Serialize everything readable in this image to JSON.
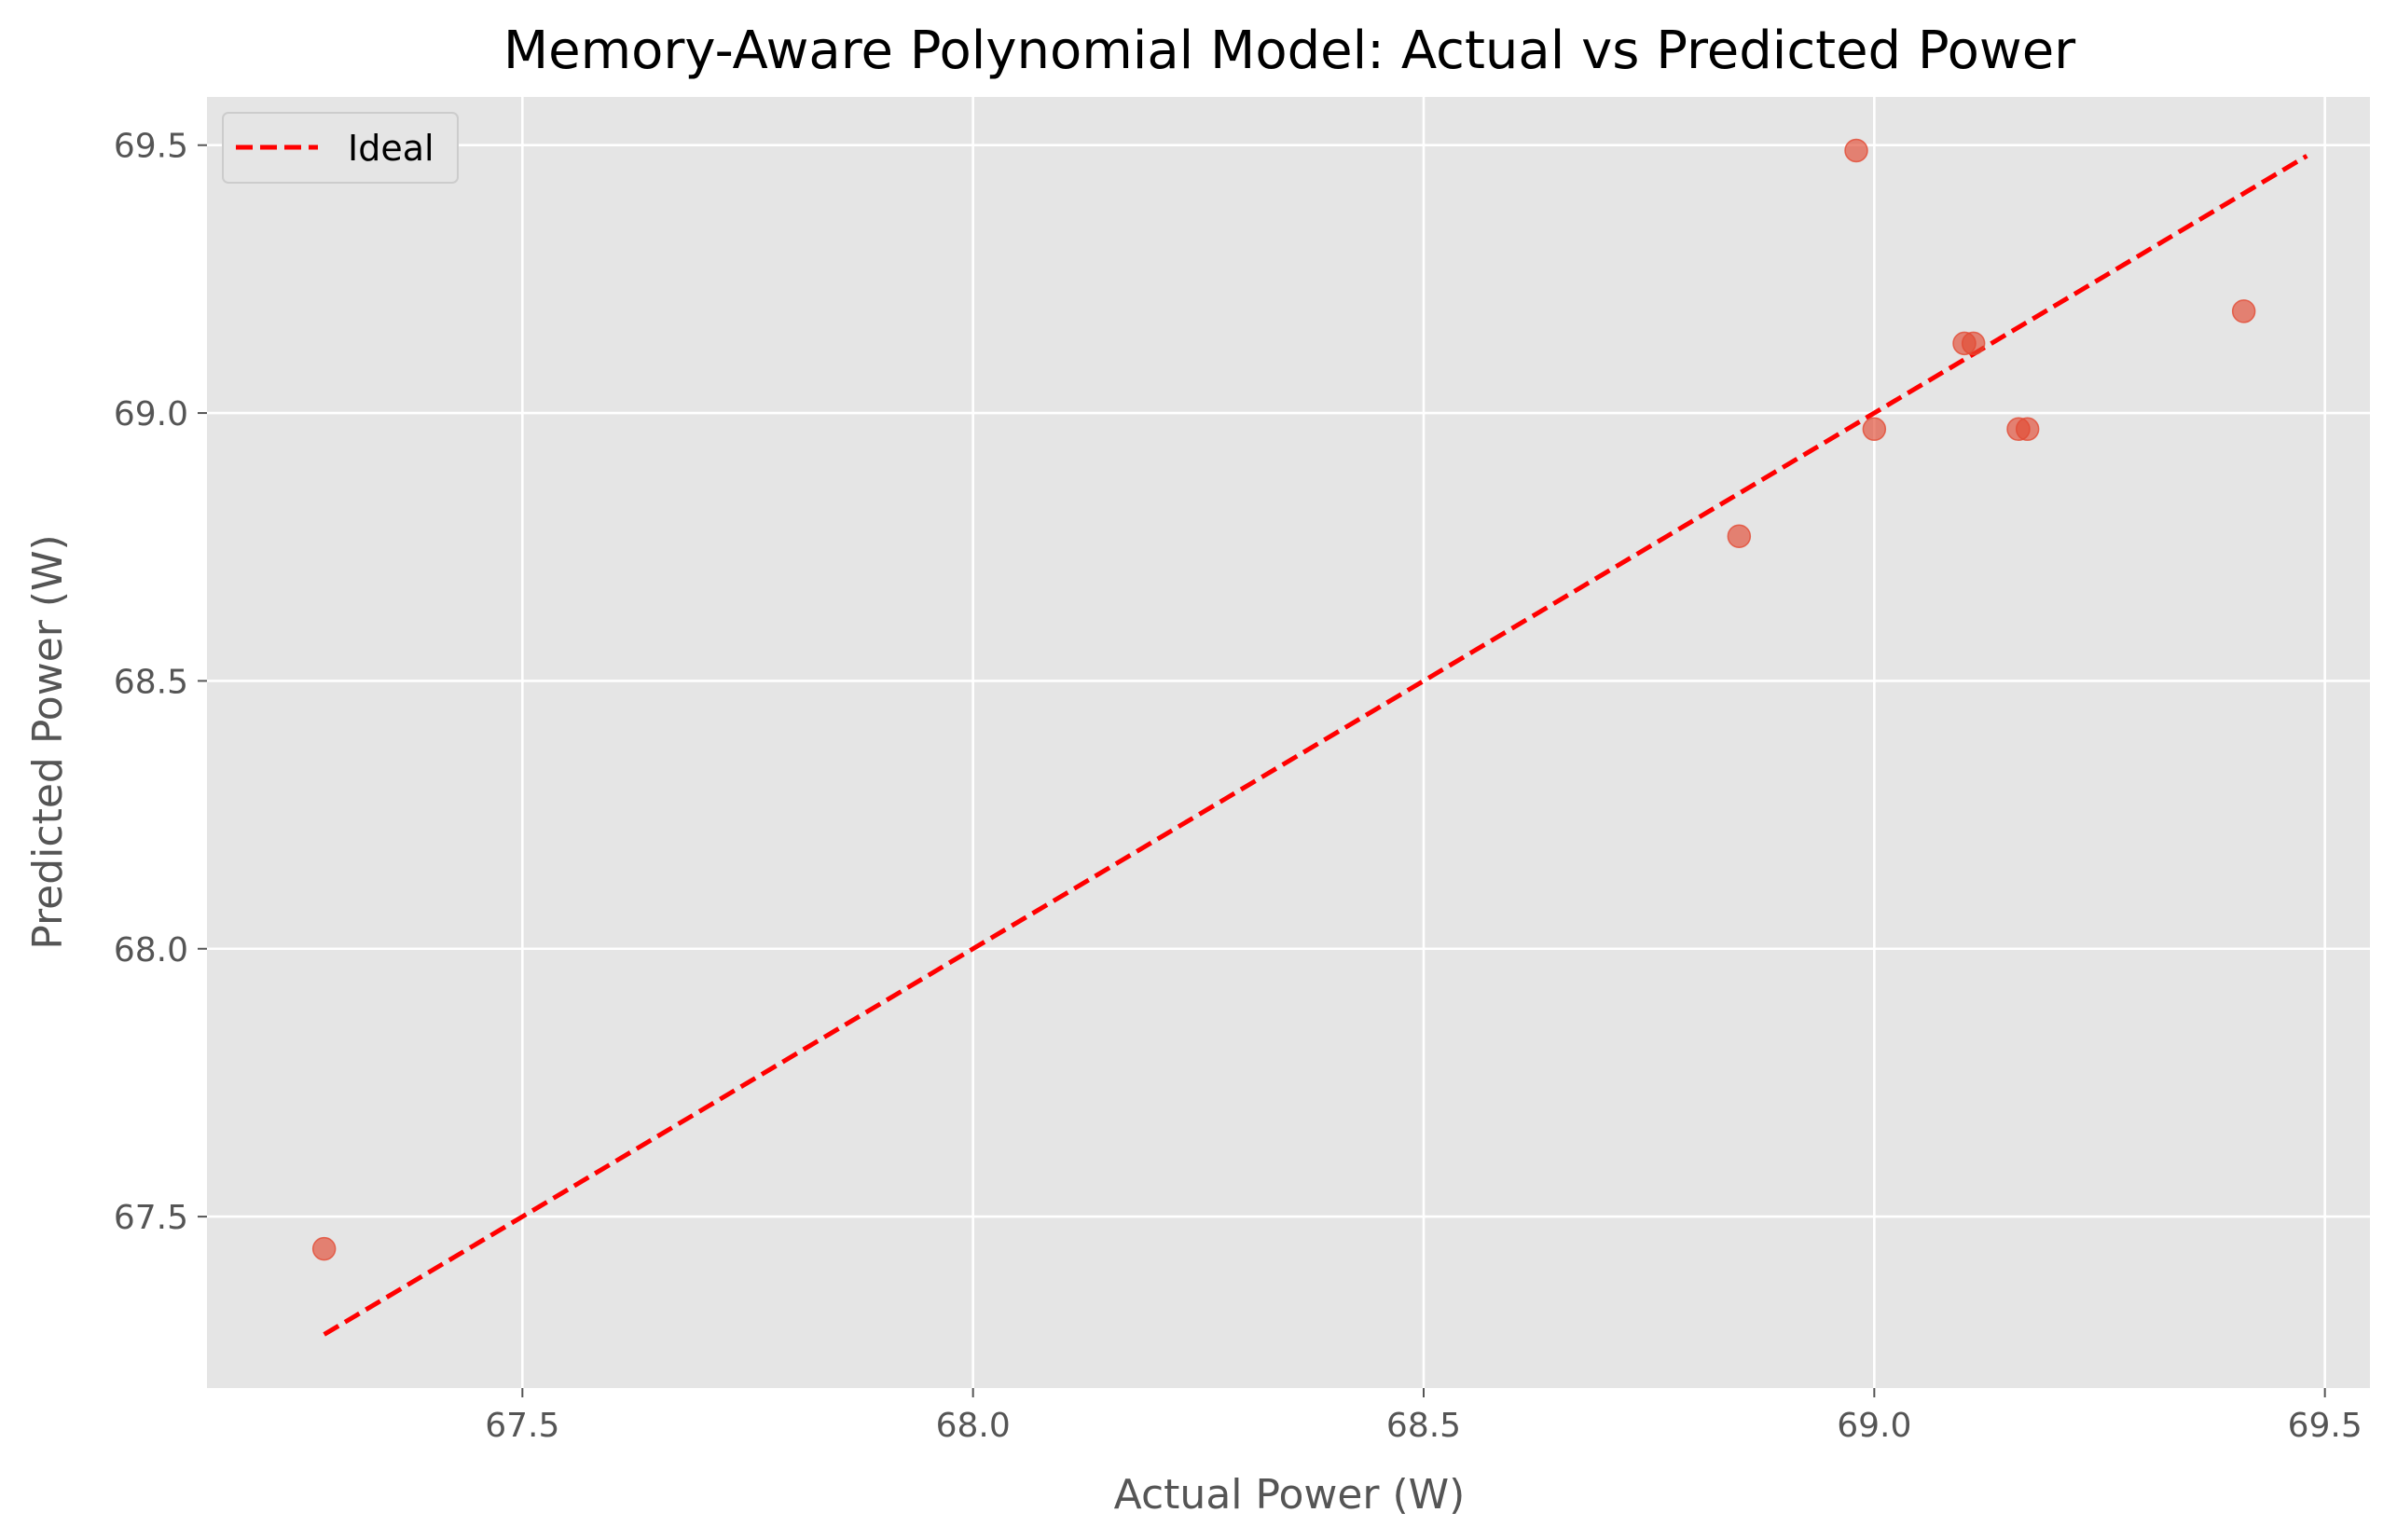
{
  "chart_data": {
    "type": "scatter",
    "title": "Memory-Aware Polynomial Model: Actual vs Predicted Power",
    "xlabel": "Actual Power (W)",
    "ylabel": "Predicted Power (W)",
    "xlim": [
      67.15,
      69.55
    ],
    "ylim": [
      67.18,
      69.59
    ],
    "xticks": [
      67.5,
      68.0,
      68.5,
      69.0,
      69.5
    ],
    "yticks": [
      67.5,
      68.0,
      68.5,
      69.0,
      69.5
    ],
    "grid": true,
    "legend": {
      "placement": "top-left",
      "entries": [
        "Ideal"
      ]
    },
    "ideal_line": {
      "name": "Ideal",
      "x": [
        67.28,
        69.48
      ],
      "y": [
        67.28,
        69.48
      ],
      "color": "#ff0000",
      "style": "dashed"
    },
    "points": [
      {
        "x": 67.28,
        "y": 67.44
      },
      {
        "x": 68.85,
        "y": 68.77
      },
      {
        "x": 68.98,
        "y": 69.49
      },
      {
        "x": 69.0,
        "y": 68.97
      },
      {
        "x": 69.1,
        "y": 69.13
      },
      {
        "x": 69.11,
        "y": 69.13
      },
      {
        "x": 69.16,
        "y": 68.97
      },
      {
        "x": 69.17,
        "y": 68.97
      },
      {
        "x": 69.41,
        "y": 69.19
      }
    ],
    "point_color": "#e24a33",
    "plot_bg": "#e5e5e5"
  }
}
